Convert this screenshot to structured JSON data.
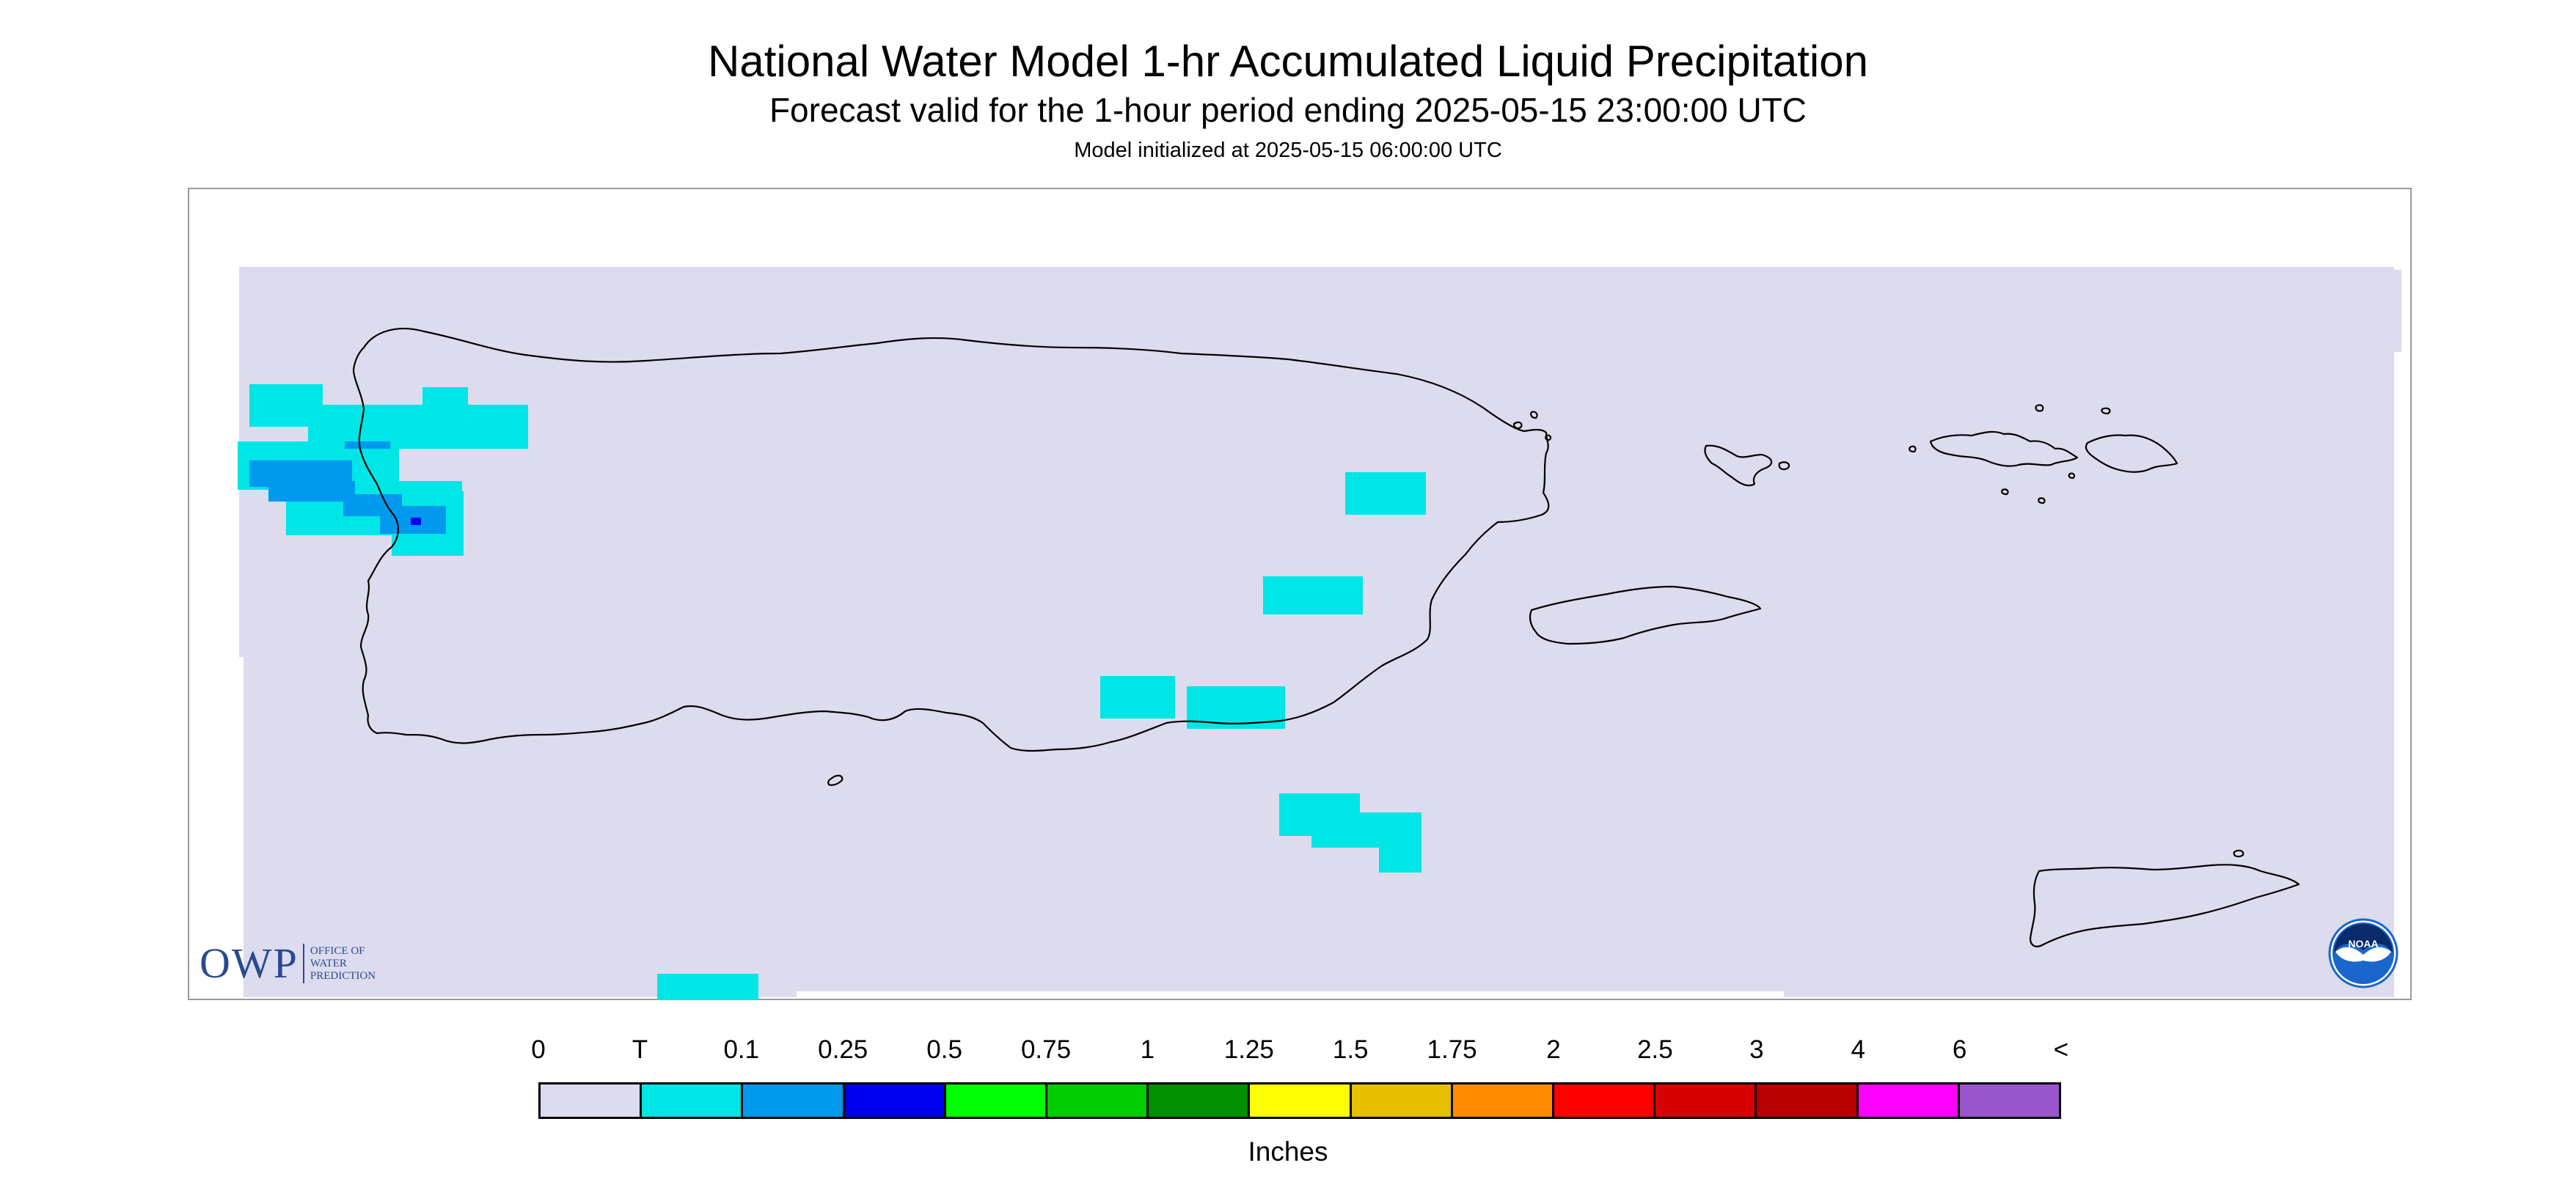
{
  "header": {
    "title": "National Water Model 1-hr Accumulated Liquid Precipitation",
    "subtitle": "Forecast valid for the 1-hour period ending 2025-05-15 23:00:00 UTC",
    "init_line": "Model initialized at 2025-05-15 06:00:00 UTC"
  },
  "map": {
    "region": "Puerto Rico and U.S. Virgin Islands",
    "background_color": "#dcdcee",
    "coastline_color": "#000000",
    "precip_colors": {
      "T": "#00e5e5",
      "0.1": "#0099ee",
      "0.25": "#0000ee"
    }
  },
  "logos": {
    "owp_mark": "OWP",
    "owp_text": [
      "OFFICE OF",
      "WATER",
      "PREDICTION"
    ],
    "noaa_text": "NOAA",
    "noaa_icon": "noaa-seal-icon"
  },
  "legend": {
    "labels": [
      "0",
      "T",
      "0.1",
      "0.25",
      "0.5",
      "0.75",
      "1",
      "1.25",
      "1.5",
      "1.75",
      "2",
      "2.5",
      "3",
      "4",
      "6",
      "<"
    ],
    "colors": [
      "#dcdcee",
      "#00e5e5",
      "#0099ee",
      "#0000ee",
      "#00ff00",
      "#00cc00",
      "#008f00",
      "#ffff00",
      "#e6bf00",
      "#ff8c00",
      "#ff0000",
      "#d80000",
      "#b80000",
      "#ff00ff",
      "#9955cc"
    ],
    "units": "Inches"
  }
}
